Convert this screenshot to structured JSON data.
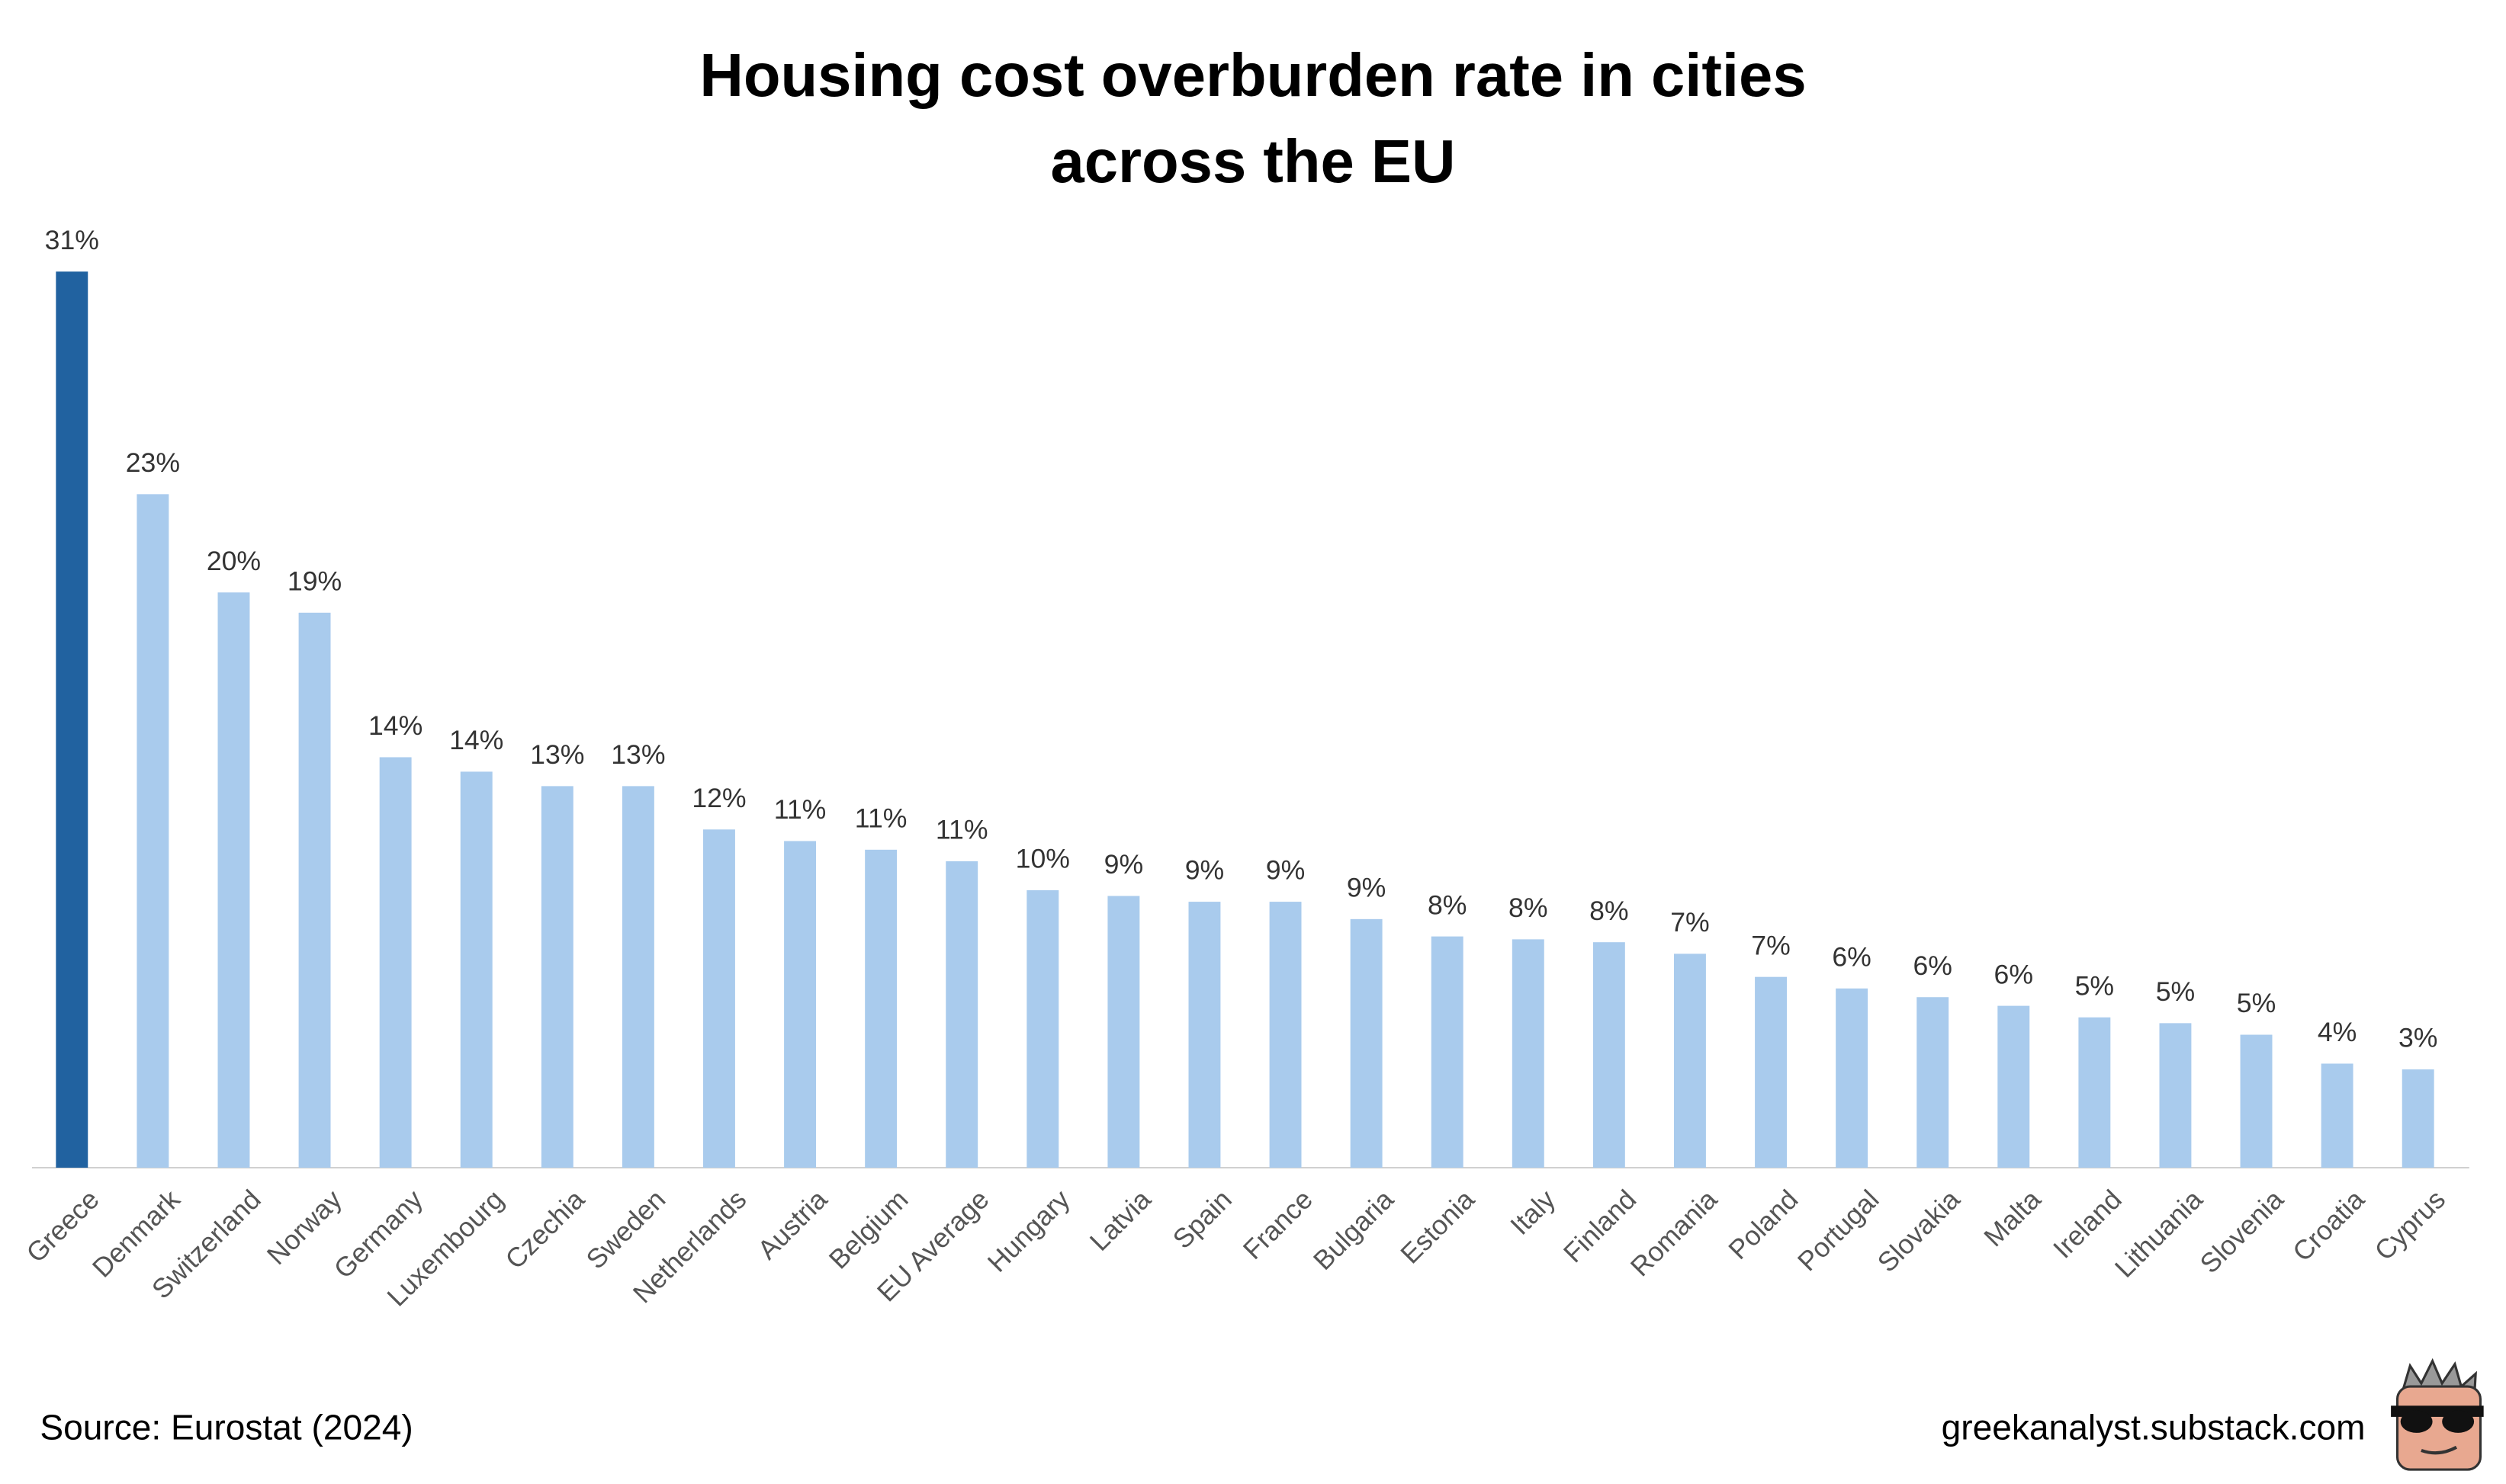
{
  "chart_data": {
    "type": "bar",
    "title": [
      "Housing cost overburden rate in cities",
      "across the EU"
    ],
    "categories": [
      "Greece",
      "Denmark",
      "Switzerland",
      "Norway",
      "Germany",
      "Luxembourg",
      "Czechia",
      "Sweden",
      "Netherlands",
      "Austria",
      "Belgium",
      "EU Average",
      "Hungary",
      "Latvia",
      "Spain",
      "France",
      "Bulgaria",
      "Estonia",
      "Italy",
      "Finland",
      "Romania",
      "Poland",
      "Portugal",
      "Slovakia",
      "Malta",
      "Ireland",
      "Lithuania",
      "Slovenia",
      "Croatia",
      "Cyprus"
    ],
    "values": [
      31,
      23.3,
      19.9,
      19.2,
      14.2,
      13.7,
      13.2,
      13.2,
      11.7,
      11.3,
      11.0,
      10.6,
      9.6,
      9.4,
      9.2,
      9.2,
      8.6,
      8.0,
      7.9,
      7.8,
      7.4,
      6.6,
      6.2,
      5.9,
      5.6,
      5.2,
      5.0,
      4.6,
      3.6,
      3.4
    ],
    "value_labels": [
      "31%",
      "23%",
      "20%",
      "19%",
      "14%",
      "14%",
      "13%",
      "13%",
      "12%",
      "11%",
      "11%",
      "11%",
      "10%",
      "9%",
      "9%",
      "9%",
      "9%",
      "8%",
      "8%",
      "8%",
      "7%",
      "7%",
      "6%",
      "6%",
      "6%",
      "5%",
      "5%",
      "5%",
      "4%",
      "3%"
    ],
    "colors": [
      "#2162a0",
      "#a9cbed",
      "#a9cbed",
      "#a9cbed",
      "#a9cbed",
      "#a9cbed",
      "#a9cbed",
      "#a9cbed",
      "#a9cbed",
      "#a9cbed",
      "#a9cbed",
      "#a9cbed",
      "#a9cbed",
      "#a9cbed",
      "#a9cbed",
      "#a9cbed",
      "#a9cbed",
      "#a9cbed",
      "#a9cbed",
      "#a9cbed",
      "#a9cbed",
      "#a9cbed",
      "#a9cbed",
      "#a9cbed",
      "#a9cbed",
      "#a9cbed",
      "#a9cbed",
      "#a9cbed",
      "#a9cbed",
      "#a9cbed"
    ],
    "ylim": [
      0,
      31
    ],
    "source": "Source: Eurostat (2024)",
    "credit": "greekanalyst.substack.com"
  }
}
